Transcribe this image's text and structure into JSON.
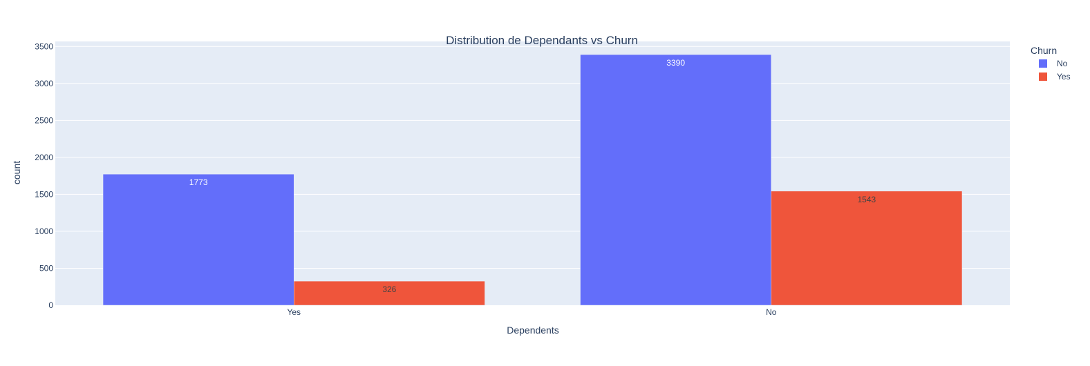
{
  "chart_data": {
    "type": "bar",
    "barmode": "group",
    "title": "Distribution de Dependants vs Churn",
    "xlabel": "Dependents",
    "ylabel": "count",
    "categories": [
      "Yes",
      "No"
    ],
    "ylim": [
      0,
      3568
    ],
    "yticks": [
      0,
      500,
      1000,
      1500,
      2000,
      2500,
      3000,
      3500
    ],
    "grid": true,
    "legend": {
      "title": "Churn",
      "placement": "top-right"
    },
    "series": [
      {
        "name": "No",
        "color": "#636efa",
        "label_color": "#ffffff",
        "values": [
          1773,
          3390
        ],
        "labels": [
          "1773",
          "3390"
        ]
      },
      {
        "name": "Yes",
        "color": "#ef553b",
        "label_color": "#444444",
        "values": [
          326,
          1543
        ],
        "labels": [
          "326",
          "1543"
        ]
      }
    ]
  },
  "colors": {
    "plot_background": "#e5ecf6",
    "gridline": "#ffffff",
    "text": "#2a3f5f"
  }
}
